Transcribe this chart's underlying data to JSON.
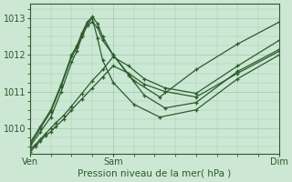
{
  "xlabel": "Pression niveau de la mer( hPa )",
  "bg_color": "#cce8d4",
  "grid_color": "#99ccaa",
  "line_color": "#2d5a2d",
  "plot_bg": "#cce8d4",
  "outer_bg": "#cce8d4",
  "xlim": [
    0,
    96
  ],
  "ylim": [
    1009.3,
    1013.4
  ],
  "yticks": [
    1010,
    1011,
    1012,
    1013
  ],
  "xtick_positions": [
    0,
    32,
    96
  ],
  "xtick_labels": [
    "Ven",
    "Sam",
    "Dim"
  ],
  "series": [
    {
      "x": [
        0,
        2,
        4,
        6,
        8,
        10,
        13,
        16,
        20,
        24,
        28,
        32,
        38,
        44,
        52,
        64,
        80,
        96
      ],
      "y": [
        1009.35,
        1009.5,
        1009.65,
        1009.8,
        1009.9,
        1010.05,
        1010.25,
        1010.5,
        1010.8,
        1011.1,
        1011.4,
        1011.7,
        1011.5,
        1011.2,
        1011.0,
        1010.85,
        1011.5,
        1012.1
      ],
      "marker": true
    },
    {
      "x": [
        0,
        2,
        4,
        6,
        8,
        10,
        13,
        16,
        20,
        24,
        28,
        32,
        38,
        44,
        52,
        64,
        80,
        96
      ],
      "y": [
        1009.4,
        1009.55,
        1009.7,
        1009.85,
        1010.0,
        1010.15,
        1010.35,
        1010.6,
        1010.95,
        1011.3,
        1011.6,
        1011.95,
        1011.7,
        1011.35,
        1011.1,
        1010.95,
        1011.7,
        1012.4
      ],
      "marker": true
    },
    {
      "x": [
        0,
        4,
        8,
        12,
        16,
        18,
        20,
        22,
        24,
        26,
        28,
        32,
        40,
        50,
        64,
        80,
        96
      ],
      "y": [
        1009.5,
        1009.9,
        1010.3,
        1011.0,
        1011.8,
        1012.1,
        1012.5,
        1012.8,
        1012.9,
        1012.75,
        1012.4,
        1012.0,
        1011.3,
        1010.85,
        1011.6,
        1012.3,
        1012.9
      ],
      "marker": true
    },
    {
      "x": [
        0,
        4,
        8,
        12,
        16,
        18,
        20,
        22,
        24,
        26,
        28,
        32,
        40,
        50,
        64,
        80,
        96
      ],
      "y": [
        1009.55,
        1010.0,
        1010.45,
        1011.15,
        1011.95,
        1012.2,
        1012.55,
        1012.85,
        1013.0,
        1012.45,
        1011.85,
        1011.25,
        1010.65,
        1010.3,
        1010.5,
        1011.35,
        1012.0
      ],
      "marker": true
    },
    {
      "x": [
        0,
        4,
        8,
        12,
        16,
        18,
        20,
        22,
        24,
        26,
        28,
        32,
        38,
        44,
        52,
        64,
        80,
        96
      ],
      "y": [
        1009.6,
        1010.05,
        1010.5,
        1011.2,
        1012.0,
        1012.25,
        1012.6,
        1012.9,
        1013.05,
        1012.85,
        1012.5,
        1012.0,
        1011.45,
        1010.9,
        1010.55,
        1010.7,
        1011.55,
        1012.15
      ],
      "marker": true
    }
  ]
}
